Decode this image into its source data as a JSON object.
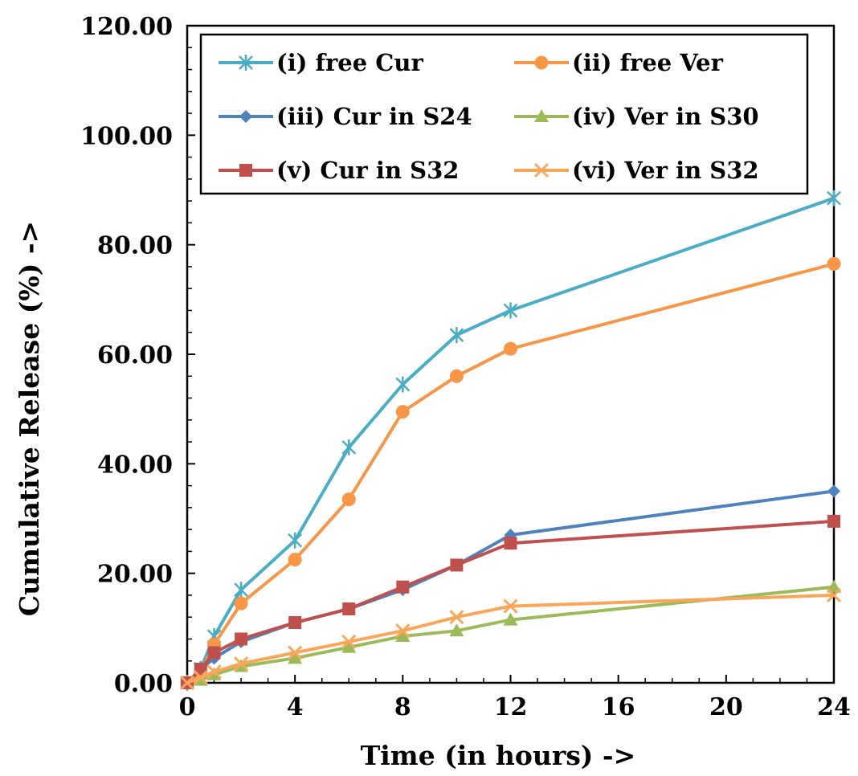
{
  "chart_data": {
    "type": "line",
    "xlabel": "Time (in hours) ->",
    "ylabel": "Cumulative Release (%) ->",
    "xlim": [
      0,
      24
    ],
    "ylim": [
      0,
      120
    ],
    "xticks": [
      0,
      4,
      8,
      12,
      16,
      20,
      24
    ],
    "xtick_labels": [
      "0",
      "4",
      "8",
      "12",
      "16",
      "20",
      "24"
    ],
    "yticks": [
      0,
      20,
      40,
      60,
      80,
      100,
      120
    ],
    "ytick_labels": [
      "0.00",
      "20.00",
      "40.00",
      "60.00",
      "80.00",
      "100.00",
      "120.00"
    ],
    "grid": false,
    "legend_position": "top",
    "series": [
      {
        "name": "(i) free Cur",
        "color": "#4BACC6",
        "marker": "star",
        "x": [
          0,
          0.5,
          1,
          2,
          4,
          6,
          8,
          10,
          12,
          24
        ],
        "y": [
          0,
          2.5,
          8.5,
          17,
          26,
          43,
          54.5,
          63.5,
          68,
          88.5
        ]
      },
      {
        "name": "(ii) free Ver",
        "color": "#F79646",
        "marker": "circle",
        "x": [
          0,
          0.5,
          1,
          2,
          4,
          6,
          8,
          10,
          12,
          24
        ],
        "y": [
          0,
          2,
          7,
          14.5,
          22.5,
          33.5,
          49.5,
          56,
          61,
          76.5
        ]
      },
      {
        "name": "(iii) Cur in S24",
        "color": "#4F81BD",
        "marker": "diamond",
        "x": [
          0,
          0.5,
          1,
          2,
          4,
          6,
          8,
          10,
          12,
          24
        ],
        "y": [
          0,
          2.5,
          4.5,
          7.5,
          11,
          13.5,
          17,
          21.5,
          27,
          35
        ]
      },
      {
        "name": "(iv) Ver in S30",
        "color": "#9BBB59",
        "marker": "triangle",
        "x": [
          0,
          0.5,
          1,
          2,
          4,
          6,
          8,
          10,
          12,
          24
        ],
        "y": [
          0,
          0.5,
          1.5,
          3,
          4.5,
          6.5,
          8.5,
          9.5,
          11.5,
          17.5
        ]
      },
      {
        "name": "(v) Cur in S32",
        "color": "#C0504D",
        "marker": "square",
        "x": [
          0,
          0.5,
          1,
          2,
          4,
          6,
          8,
          10,
          12,
          24
        ],
        "y": [
          0,
          2.5,
          5.5,
          8,
          11,
          13.5,
          17.5,
          21.5,
          25.5,
          29.5
        ]
      },
      {
        "name": "(vi) Ver in S32",
        "color": "#F9A65A",
        "marker": "x",
        "x": [
          0,
          0.5,
          1,
          2,
          4,
          6,
          8,
          10,
          12,
          24
        ],
        "y": [
          0,
          1,
          2,
          3.5,
          5.5,
          7.5,
          9.5,
          12,
          14,
          16
        ]
      }
    ]
  }
}
